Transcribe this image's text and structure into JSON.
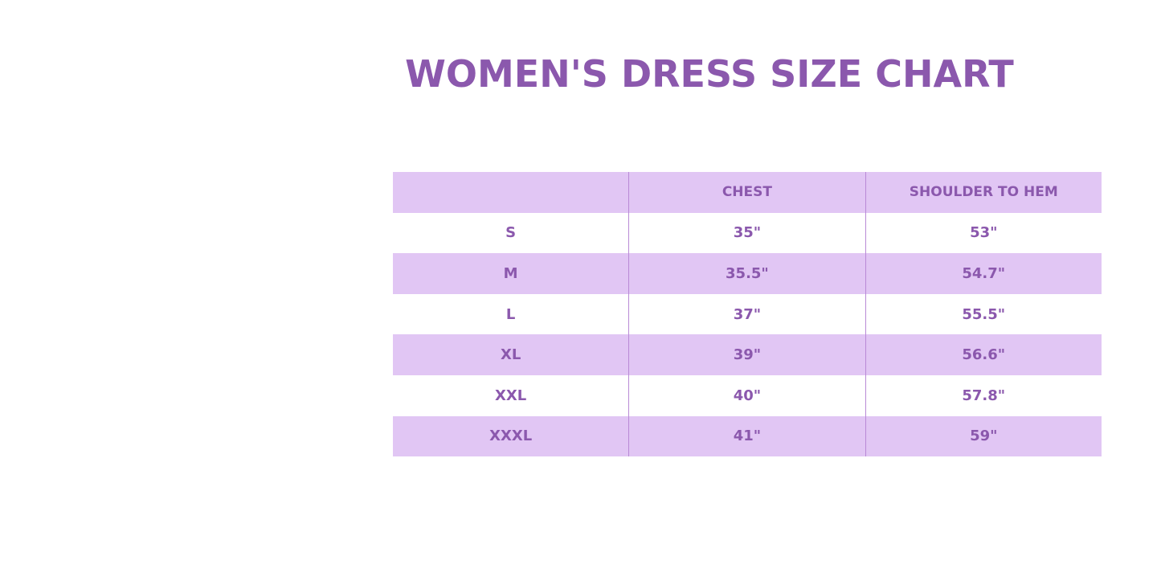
{
  "title": "WOMEN'S DRESS SIZE CHART",
  "colors": {
    "text": "#8b58ad",
    "shade": "#e1c6f4",
    "background": "#ffffff"
  },
  "headers": [
    "",
    "CHEST",
    "SHOULDER TO HEM"
  ],
  "rows": [
    [
      "S",
      "35\"",
      "53\""
    ],
    [
      "M",
      "35.5\"",
      "54.7\""
    ],
    [
      "L",
      "37\"",
      "55.5\""
    ],
    [
      "XL",
      "39\"",
      "56.6\""
    ],
    [
      "XXL",
      "40\"",
      "57.8\""
    ],
    [
      "XXXL",
      "41\"",
      "59\""
    ]
  ]
}
